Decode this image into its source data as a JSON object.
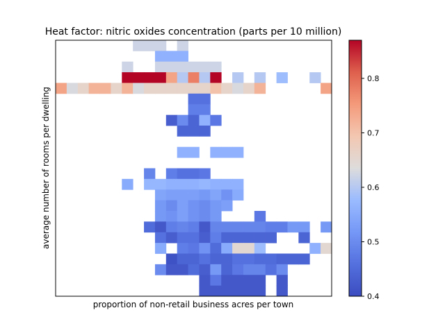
{
  "chart_data": {
    "type": "heatmap",
    "title": "Heat factor: nitric oxides concentration (parts per 10 million)",
    "xlabel": "proportion of non-retail business acres per town",
    "ylabel": "average number of rooms per dwelling",
    "colormap": "coolwarm",
    "colorbar": {
      "min": 0.4,
      "max": 0.87,
      "ticks": [
        0.4,
        0.5,
        0.6,
        0.7,
        0.8
      ]
    },
    "grid_cols": 25,
    "grid_rows": 24,
    "cells": [
      [
        7,
        0,
        0.62
      ],
      [
        8,
        0,
        0.62
      ],
      [
        9,
        0,
        0.62
      ],
      [
        11,
        0,
        0.62
      ],
      [
        9,
        1,
        0.56
      ],
      [
        10,
        1,
        0.56
      ],
      [
        11,
        1,
        0.56
      ],
      [
        6,
        2,
        0.62
      ],
      [
        9,
        2,
        0.62
      ],
      [
        10,
        2,
        0.62
      ],
      [
        11,
        2,
        0.62
      ],
      [
        12,
        2,
        0.62
      ],
      [
        13,
        2,
        0.62
      ],
      [
        14,
        2,
        0.62
      ],
      [
        6,
        3,
        0.87
      ],
      [
        7,
        3,
        0.87
      ],
      [
        8,
        3,
        0.87
      ],
      [
        9,
        3,
        0.87
      ],
      [
        10,
        3,
        0.74
      ],
      [
        11,
        3,
        0.6
      ],
      [
        12,
        3,
        0.78
      ],
      [
        13,
        3,
        0.6
      ],
      [
        14,
        3,
        0.87
      ],
      [
        16,
        3,
        0.6
      ],
      [
        18,
        3,
        0.6
      ],
      [
        20,
        3,
        0.58
      ],
      [
        23,
        3,
        0.6
      ],
      [
        0,
        4,
        0.74
      ],
      [
        1,
        4,
        0.63
      ],
      [
        2,
        4,
        0.66
      ],
      [
        3,
        4,
        0.72
      ],
      [
        4,
        4,
        0.72
      ],
      [
        5,
        4,
        0.66
      ],
      [
        6,
        4,
        0.72
      ],
      [
        7,
        4,
        0.63
      ],
      [
        8,
        4,
        0.66
      ],
      [
        9,
        4,
        0.66
      ],
      [
        10,
        4,
        0.66
      ],
      [
        11,
        4,
        0.66
      ],
      [
        12,
        4,
        0.66
      ],
      [
        13,
        4,
        0.66
      ],
      [
        14,
        4,
        0.7
      ],
      [
        15,
        4,
        0.66
      ],
      [
        16,
        4,
        0.63
      ],
      [
        17,
        4,
        0.66
      ],
      [
        18,
        4,
        0.72
      ],
      [
        24,
        4,
        0.74
      ],
      [
        12,
        5,
        0.46
      ],
      [
        13,
        5,
        0.46
      ],
      [
        12,
        6,
        0.48
      ],
      [
        13,
        6,
        0.48
      ],
      [
        10,
        7,
        0.43
      ],
      [
        11,
        7,
        0.5
      ],
      [
        12,
        7,
        0.44
      ],
      [
        13,
        7,
        0.56
      ],
      [
        14,
        7,
        0.47
      ],
      [
        11,
        8,
        0.44
      ],
      [
        12,
        8,
        0.44
      ],
      [
        13,
        8,
        0.44
      ],
      [
        11,
        10,
        0.56
      ],
      [
        12,
        10,
        0.56
      ],
      [
        14,
        10,
        0.56
      ],
      [
        15,
        10,
        0.56
      ],
      [
        16,
        10,
        0.56
      ],
      [
        8,
        12,
        0.49
      ],
      [
        10,
        12,
        0.48
      ],
      [
        11,
        12,
        0.46
      ],
      [
        12,
        12,
        0.46
      ],
      [
        13,
        12,
        0.47
      ],
      [
        6,
        13,
        0.55
      ],
      [
        8,
        13,
        0.57
      ],
      [
        9,
        13,
        0.57
      ],
      [
        10,
        13,
        0.56
      ],
      [
        11,
        13,
        0.56
      ],
      [
        12,
        13,
        0.56
      ],
      [
        13,
        13,
        0.57
      ],
      [
        14,
        13,
        0.56
      ],
      [
        15,
        13,
        0.56
      ],
      [
        16,
        13,
        0.56
      ],
      [
        9,
        14,
        0.54
      ],
      [
        10,
        14,
        0.53
      ],
      [
        11,
        14,
        0.53
      ],
      [
        12,
        14,
        0.53
      ],
      [
        13,
        14,
        0.52
      ],
      [
        14,
        14,
        0.54
      ],
      [
        15,
        14,
        0.51
      ],
      [
        16,
        14,
        0.55
      ],
      [
        9,
        15,
        0.52
      ],
      [
        10,
        15,
        0.5
      ],
      [
        11,
        15,
        0.53
      ],
      [
        12,
        15,
        0.51
      ],
      [
        13,
        15,
        0.5
      ],
      [
        14,
        15,
        0.52
      ],
      [
        15,
        15,
        0.53
      ],
      [
        9,
        16,
        0.52
      ],
      [
        10,
        16,
        0.51
      ],
      [
        11,
        16,
        0.53
      ],
      [
        12,
        16,
        0.51
      ],
      [
        13,
        16,
        0.5
      ],
      [
        14,
        16,
        0.52
      ],
      [
        18,
        16,
        0.47
      ],
      [
        8,
        17,
        0.45
      ],
      [
        9,
        17,
        0.42
      ],
      [
        10,
        17,
        0.48
      ],
      [
        11,
        17,
        0.49
      ],
      [
        12,
        17,
        0.48
      ],
      [
        13,
        17,
        0.42
      ],
      [
        14,
        17,
        0.49
      ],
      [
        15,
        17,
        0.49
      ],
      [
        16,
        17,
        0.49
      ],
      [
        17,
        17,
        0.49
      ],
      [
        18,
        17,
        0.49
      ],
      [
        19,
        17,
        0.48
      ],
      [
        20,
        17,
        0.48
      ],
      [
        21,
        17,
        0.52
      ],
      [
        22,
        17,
        0.52
      ],
      [
        24,
        17,
        0.52
      ],
      [
        9,
        18,
        0.46
      ],
      [
        10,
        18,
        0.43
      ],
      [
        11,
        18,
        0.46
      ],
      [
        12,
        18,
        0.46
      ],
      [
        13,
        18,
        0.43
      ],
      [
        14,
        18,
        0.48
      ],
      [
        15,
        18,
        0.44
      ],
      [
        16,
        18,
        0.44
      ],
      [
        17,
        18,
        0.44
      ],
      [
        18,
        18,
        0.44
      ],
      [
        19,
        18,
        0.44
      ],
      [
        22,
        18,
        0.44
      ],
      [
        9,
        19,
        0.55
      ],
      [
        11,
        19,
        0.48
      ],
      [
        12,
        19,
        0.47
      ],
      [
        13,
        19,
        0.51
      ],
      [
        14,
        19,
        0.45
      ],
      [
        15,
        19,
        0.55
      ],
      [
        16,
        19,
        0.65
      ],
      [
        17,
        19,
        0.65
      ],
      [
        18,
        19,
        0.58
      ],
      [
        23,
        19,
        0.56
      ],
      [
        24,
        19,
        0.65
      ],
      [
        10,
        20,
        0.41
      ],
      [
        11,
        20,
        0.44
      ],
      [
        12,
        20,
        0.44
      ],
      [
        13,
        20,
        0.46
      ],
      [
        14,
        20,
        0.44
      ],
      [
        15,
        20,
        0.44
      ],
      [
        16,
        20,
        0.46
      ],
      [
        17,
        20,
        0.46
      ],
      [
        18,
        20,
        0.45
      ],
      [
        19,
        20,
        0.45
      ],
      [
        20,
        20,
        0.44
      ],
      [
        21,
        20,
        0.44
      ],
      [
        22,
        20,
        0.44
      ],
      [
        9,
        21,
        0.5
      ],
      [
        10,
        21,
        0.42
      ],
      [
        11,
        21,
        0.42
      ],
      [
        12,
        21,
        0.45
      ],
      [
        13,
        21,
        0.43
      ],
      [
        14,
        21,
        0.52
      ],
      [
        15,
        21,
        0.44
      ],
      [
        16,
        21,
        0.47
      ],
      [
        17,
        21,
        0.49
      ],
      [
        18,
        21,
        0.49
      ],
      [
        19,
        21,
        0.46
      ],
      [
        20,
        21,
        0.5
      ],
      [
        13,
        22,
        0.42
      ],
      [
        14,
        22,
        0.47
      ],
      [
        15,
        22,
        0.42
      ],
      [
        16,
        22,
        0.42
      ],
      [
        17,
        22,
        0.42
      ],
      [
        18,
        22,
        0.42
      ],
      [
        20,
        22,
        0.42
      ],
      [
        13,
        23,
        0.42
      ],
      [
        14,
        23,
        0.42
      ],
      [
        15,
        23,
        0.42
      ],
      [
        16,
        23,
        0.42
      ],
      [
        17,
        23,
        0.42
      ],
      [
        18,
        23,
        0.42
      ],
      [
        20,
        23,
        0.42
      ]
    ]
  }
}
